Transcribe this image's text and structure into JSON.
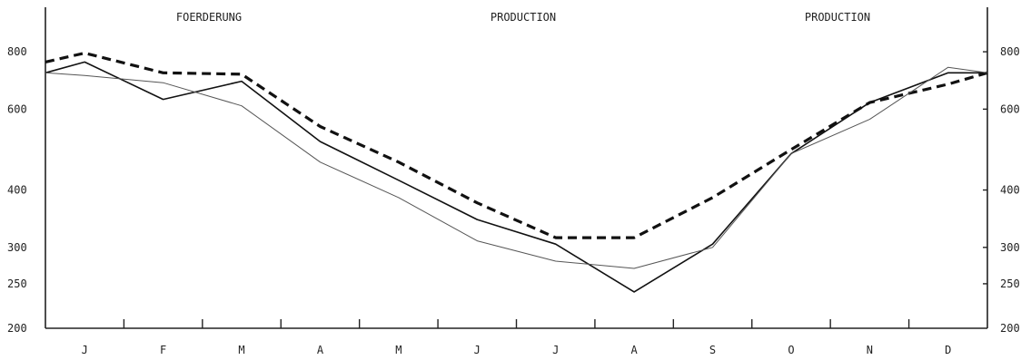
{
  "chart_data": {
    "type": "line",
    "title": "",
    "headers": [
      "FOERDERUNG",
      "PRODUCTION",
      "PRODUCTION"
    ],
    "categories": [
      "J",
      "F",
      "M",
      "A",
      "M",
      "J",
      "J",
      "A",
      "S",
      "O",
      "N",
      "D"
    ],
    "x": [
      0,
      0.5,
      1.5,
      2.5,
      3.5,
      4.5,
      5.5,
      6.5,
      7.5,
      8.5,
      9.5,
      10.5,
      11.5,
      12
    ],
    "yscale": "log",
    "ylim": [
      200,
      1000
    ],
    "yticks": [
      200,
      250,
      300,
      400,
      600,
      800
    ],
    "grid": false,
    "series": [
      {
        "style": "dashed-thick",
        "color": "#111111",
        "values": [
          760,
          795,
          720,
          715,
          550,
          460,
          375,
          315,
          315,
          385,
          490,
          620,
          680,
          720
        ]
      },
      {
        "style": "solid-medium",
        "color": "#111111",
        "values": [
          720,
          760,
          630,
          690,
          510,
          420,
          345,
          305,
          240,
          305,
          480,
          620,
          720,
          720
        ]
      },
      {
        "style": "solid-thin",
        "color": "#555555",
        "values": [
          720,
          710,
          685,
          610,
          460,
          385,
          310,
          280,
          270,
          300,
          480,
          570,
          740,
          720
        ]
      }
    ]
  }
}
